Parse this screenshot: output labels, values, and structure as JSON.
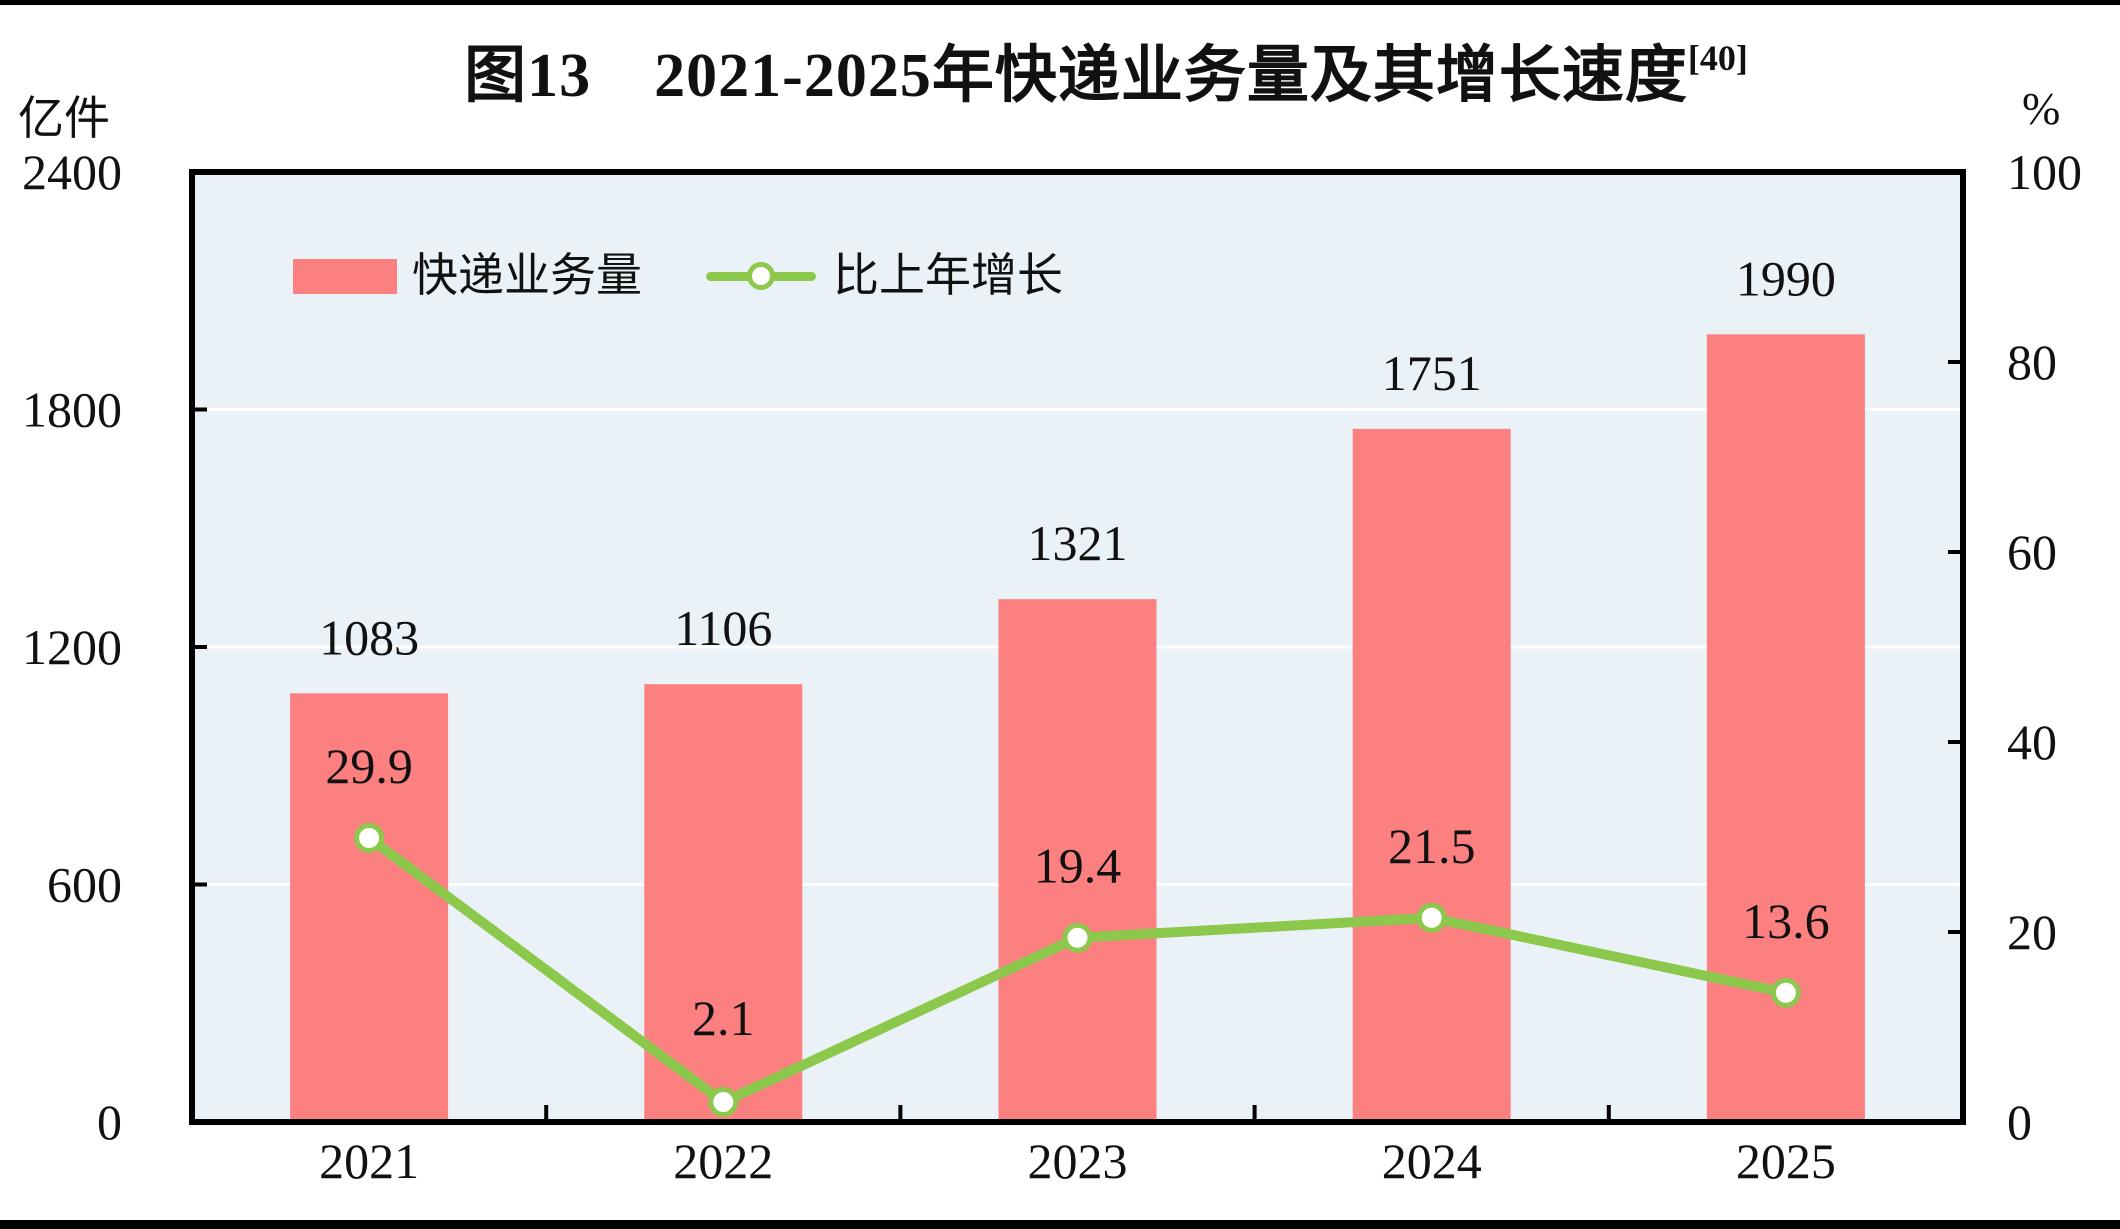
{
  "title": {
    "text": "图13　2021-2025年快递业务量及其增长速度",
    "superscript": "[40]"
  },
  "left_axis": {
    "unit": "亿件",
    "max": 2400,
    "ticks": [
      0,
      600,
      1200,
      1800,
      2400
    ]
  },
  "right_axis": {
    "unit": "%",
    "max": 100,
    "ticks": [
      0,
      20,
      40,
      60,
      80,
      100
    ]
  },
  "legend": {
    "bar_label": "快递业务量",
    "line_label": "比上年增长"
  },
  "chart_data": {
    "type": "bar+line",
    "title": "图13 2021-2025年快递业务量及其增长速度[40]",
    "categories": [
      "2021",
      "2022",
      "2023",
      "2024",
      "2025"
    ],
    "series": [
      {
        "name": "快递业务量",
        "type": "bar",
        "axis": "left",
        "unit": "亿件",
        "values": [
          1083,
          1106,
          1321,
          1751,
          1990
        ]
      },
      {
        "name": "比上年增长",
        "type": "line",
        "axis": "right",
        "unit": "%",
        "values": [
          29.9,
          2.1,
          19.4,
          21.5,
          13.6
        ]
      }
    ],
    "left_ylim": [
      0,
      2400
    ],
    "right_ylim": [
      0,
      100
    ],
    "grid": "horizontal-white",
    "legend_position": "top-left-inside",
    "colors": {
      "bar": "#fc8080",
      "line": "#8cc84b",
      "marker_fill": "#ffffff",
      "plot_background": "#eaf2f7",
      "gridline": "#ffffff",
      "axis": "#000000",
      "text": "#111111",
      "letterbox": "#000000"
    }
  }
}
